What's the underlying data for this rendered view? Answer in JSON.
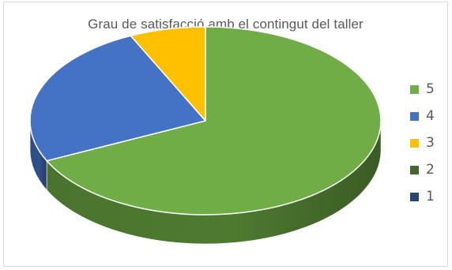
{
  "chart_data": {
    "type": "pie",
    "title": "Grau de satisfacció amb el contingut del taller",
    "categories": [
      "5",
      "4",
      "3",
      "2",
      "1"
    ],
    "values": [
      68,
      25,
      7,
      0,
      0
    ],
    "colors": [
      "#70ad47",
      "#4472c4",
      "#ffc000",
      "#43682b",
      "#264478"
    ],
    "side_colors": [
      "#4e7a30",
      "#2f508b",
      "#b38600",
      "#2f4a1e",
      "#1a2f54"
    ],
    "legend_position": "right",
    "style": "3d"
  }
}
